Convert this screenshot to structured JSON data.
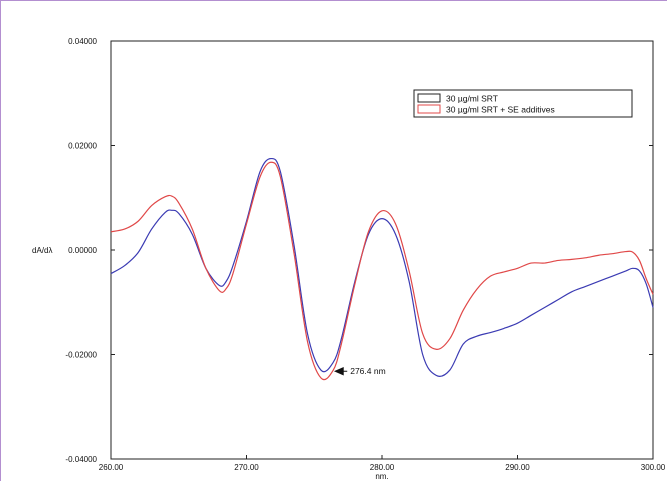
{
  "chart_data": {
    "type": "line",
    "xlabel": "nm.",
    "ylabel": "dA/dλ",
    "xlim": [
      260,
      300
    ],
    "ylim": [
      -0.04,
      0.04
    ],
    "x_ticks": [
      "260.00",
      "270.00",
      "280.00",
      "290.00",
      "300.00"
    ],
    "y_ticks": [
      "0.04000",
      "0.02000",
      "0.00000",
      "-0.02000",
      "-0.04000"
    ],
    "grid": false,
    "legend_position": "top-right",
    "series": [
      {
        "name": "30 µg/ml SRT",
        "color": "#3b3bb3",
        "points": [
          [
            260.0,
            -0.0045
          ],
          [
            261.0,
            -0.003
          ],
          [
            262.0,
            -0.0005
          ],
          [
            263.0,
            0.004
          ],
          [
            264.0,
            0.0072
          ],
          [
            264.5,
            0.0076
          ],
          [
            265.0,
            0.007
          ],
          [
            266.0,
            0.003
          ],
          [
            267.0,
            -0.0035
          ],
          [
            268.0,
            -0.0068
          ],
          [
            268.5,
            -0.006
          ],
          [
            269.0,
            -0.003
          ],
          [
            270.0,
            0.0055
          ],
          [
            271.0,
            0.015
          ],
          [
            271.8,
            0.0175
          ],
          [
            272.5,
            0.015
          ],
          [
            273.5,
            0.001
          ],
          [
            274.5,
            -0.016
          ],
          [
            275.5,
            -0.023
          ],
          [
            276.4,
            -0.0215
          ],
          [
            277.0,
            -0.017
          ],
          [
            278.0,
            -0.006
          ],
          [
            279.0,
            0.003
          ],
          [
            280.0,
            0.006
          ],
          [
            281.0,
            0.003
          ],
          [
            282.0,
            -0.006
          ],
          [
            283.0,
            -0.02
          ],
          [
            284.0,
            -0.024
          ],
          [
            285.0,
            -0.023
          ],
          [
            286.0,
            -0.018
          ],
          [
            287.0,
            -0.0165
          ],
          [
            288.0,
            -0.0158
          ],
          [
            289.0,
            -0.015
          ],
          [
            290.0,
            -0.014
          ],
          [
            291.0,
            -0.0125
          ],
          [
            292.0,
            -0.011
          ],
          [
            293.0,
            -0.0095
          ],
          [
            294.0,
            -0.008
          ],
          [
            295.0,
            -0.007
          ],
          [
            296.0,
            -0.006
          ],
          [
            297.0,
            -0.005
          ],
          [
            298.0,
            -0.004
          ],
          [
            298.5,
            -0.0035
          ],
          [
            299.0,
            -0.004
          ],
          [
            299.5,
            -0.0065
          ],
          [
            300.0,
            -0.011
          ]
        ]
      },
      {
        "name": "30 µg/ml SRT + SE additives",
        "color": "#e04848",
        "points": [
          [
            260.0,
            0.0035
          ],
          [
            261.0,
            0.004
          ],
          [
            262.0,
            0.0055
          ],
          [
            263.0,
            0.0085
          ],
          [
            264.0,
            0.0102
          ],
          [
            264.5,
            0.0103
          ],
          [
            265.0,
            0.009
          ],
          [
            266.0,
            0.004
          ],
          [
            267.0,
            -0.0035
          ],
          [
            268.0,
            -0.0078
          ],
          [
            268.5,
            -0.0074
          ],
          [
            269.0,
            -0.0045
          ],
          [
            270.0,
            0.005
          ],
          [
            271.0,
            0.014
          ],
          [
            271.8,
            0.0168
          ],
          [
            272.5,
            0.014
          ],
          [
            273.5,
            -0.0005
          ],
          [
            274.5,
            -0.0175
          ],
          [
            275.5,
            -0.0245
          ],
          [
            276.4,
            -0.023
          ],
          [
            277.0,
            -0.018
          ],
          [
            278.0,
            -0.0065
          ],
          [
            279.0,
            0.0035
          ],
          [
            280.0,
            0.0075
          ],
          [
            281.0,
            0.005
          ],
          [
            282.0,
            -0.004
          ],
          [
            283.0,
            -0.016
          ],
          [
            284.0,
            -0.019
          ],
          [
            285.0,
            -0.017
          ],
          [
            286.0,
            -0.0115
          ],
          [
            287.0,
            -0.0075
          ],
          [
            288.0,
            -0.005
          ],
          [
            289.0,
            -0.0042
          ],
          [
            290.0,
            -0.0035
          ],
          [
            291.0,
            -0.0025
          ],
          [
            292.0,
            -0.0025
          ],
          [
            293.0,
            -0.002
          ],
          [
            294.0,
            -0.0018
          ],
          [
            295.0,
            -0.0015
          ],
          [
            296.0,
            -0.001
          ],
          [
            297.0,
            -0.0007
          ],
          [
            298.0,
            -0.0003
          ],
          [
            298.5,
            -0.0004
          ],
          [
            299.0,
            -0.002
          ],
          [
            299.5,
            -0.0055
          ],
          [
            300.0,
            -0.0085
          ]
        ]
      }
    ],
    "annotation": {
      "text": "276.4 nm",
      "x": 276.4,
      "y": -0.0232
    }
  }
}
